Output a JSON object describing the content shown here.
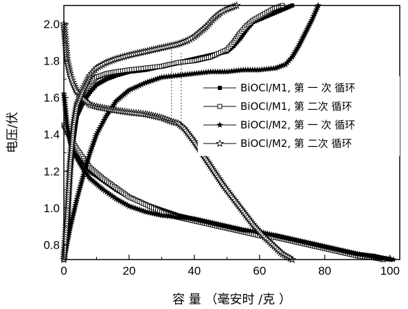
{
  "chart_data": {
    "type": "line",
    "title": "",
    "xlabel": "容 量 （毫安时 /克 ）",
    "ylabel": "电压/伏",
    "xlim": [
      0,
      103
    ],
    "ylim": [
      0.72,
      2.1
    ],
    "xticks": [
      0,
      20,
      40,
      60,
      80,
      100
    ],
    "yticks": [
      0.8,
      1.0,
      1.2,
      1.4,
      1.6,
      1.8,
      2.0
    ],
    "xtick_labels": [
      "0",
      "20",
      "40",
      "60",
      "80",
      "100"
    ],
    "ytick_labels": [
      "0.8",
      "1.0",
      "1.2",
      "1.4",
      "1.6",
      "1.8",
      "2.0"
    ],
    "grid": false,
    "legend_position": "right",
    "reference_lines": [
      {
        "x": 33.0,
        "y_from": 1.45,
        "y_to": 1.88,
        "style": "dotted"
      },
      {
        "x": 36.0,
        "y_from": 1.45,
        "y_to": 1.85,
        "style": "dotted"
      }
    ],
    "series": [
      {
        "name": "BiOCl/M1, 第 一 次 循环",
        "marker": "square-filled",
        "charge": [
          [
            0,
            0.72
          ],
          [
            1,
            0.9
          ],
          [
            2,
            1.2
          ],
          [
            3,
            1.38
          ],
          [
            4,
            1.5
          ],
          [
            6,
            1.58
          ],
          [
            8,
            1.63
          ],
          [
            10,
            1.67
          ],
          [
            13,
            1.7
          ],
          [
            16,
            1.72
          ],
          [
            20,
            1.74
          ],
          [
            25,
            1.75
          ],
          [
            30,
            1.77
          ],
          [
            35,
            1.79
          ],
          [
            40,
            1.81
          ],
          [
            45,
            1.83
          ],
          [
            50,
            1.85
          ],
          [
            52,
            1.88
          ],
          [
            54,
            1.92
          ],
          [
            56,
            1.97
          ],
          [
            58,
            2.01
          ],
          [
            62,
            2.04
          ],
          [
            66,
            2.07
          ],
          [
            70,
            2.1
          ]
        ],
        "discharge": [
          [
            0,
            1.45
          ],
          [
            2,
            1.38
          ],
          [
            4,
            1.3
          ],
          [
            6,
            1.25
          ],
          [
            8,
            1.2
          ],
          [
            12,
            1.15
          ],
          [
            16,
            1.1
          ],
          [
            20,
            1.06
          ],
          [
            25,
            1.02
          ],
          [
            30,
            0.99
          ],
          [
            35,
            0.96
          ],
          [
            40,
            0.94
          ],
          [
            45,
            0.92
          ],
          [
            50,
            0.9
          ],
          [
            55,
            0.88
          ],
          [
            60,
            0.86
          ],
          [
            65,
            0.85
          ],
          [
            70,
            0.83
          ],
          [
            75,
            0.81
          ],
          [
            80,
            0.79
          ],
          [
            85,
            0.77
          ],
          [
            90,
            0.75
          ],
          [
            95,
            0.74
          ],
          [
            100,
            0.72
          ]
        ]
      },
      {
        "name": "BiOCl/M1, 第 二次 循环",
        "marker": "square-open",
        "charge": [
          [
            0,
            0.72
          ],
          [
            1,
            0.9
          ],
          [
            2,
            1.25
          ],
          [
            3,
            1.45
          ],
          [
            4,
            1.56
          ],
          [
            6,
            1.63
          ],
          [
            8,
            1.68
          ],
          [
            10,
            1.71
          ],
          [
            13,
            1.73
          ],
          [
            16,
            1.74
          ],
          [
            20,
            1.75
          ],
          [
            25,
            1.76
          ],
          [
            30,
            1.77
          ],
          [
            35,
            1.79
          ],
          [
            40,
            1.8
          ],
          [
            45,
            1.82
          ],
          [
            50,
            1.86
          ],
          [
            52,
            1.9
          ],
          [
            54,
            1.95
          ],
          [
            56,
            1.99
          ],
          [
            58,
            2.02
          ],
          [
            61,
            2.05
          ],
          [
            64,
            2.08
          ],
          [
            67,
            2.1
          ]
        ],
        "discharge": [
          [
            0,
            1.45
          ],
          [
            2,
            1.38
          ],
          [
            4,
            1.32
          ],
          [
            6,
            1.27
          ],
          [
            8,
            1.22
          ],
          [
            12,
            1.16
          ],
          [
            16,
            1.11
          ],
          [
            20,
            1.06
          ],
          [
            25,
            1.02
          ],
          [
            30,
            0.98
          ],
          [
            35,
            0.95
          ],
          [
            40,
            0.93
          ],
          [
            45,
            0.91
          ],
          [
            50,
            0.89
          ],
          [
            55,
            0.87
          ],
          [
            60,
            0.85
          ],
          [
            65,
            0.84
          ],
          [
            70,
            0.82
          ],
          [
            75,
            0.8
          ],
          [
            80,
            0.78
          ],
          [
            85,
            0.76
          ],
          [
            90,
            0.74
          ],
          [
            95,
            0.73
          ],
          [
            98,
            0.72
          ]
        ]
      },
      {
        "name": "BiOCl/M2, 第 一 次 循环",
        "marker": "star-filled",
        "charge": [
          [
            0,
            0.72
          ],
          [
            2,
            0.9
          ],
          [
            4,
            1.05
          ],
          [
            6,
            1.18
          ],
          [
            8,
            1.3
          ],
          [
            10,
            1.4
          ],
          [
            13,
            1.5
          ],
          [
            16,
            1.58
          ],
          [
            20,
            1.64
          ],
          [
            25,
            1.68
          ],
          [
            30,
            1.71
          ],
          [
            35,
            1.72
          ],
          [
            40,
            1.73
          ],
          [
            45,
            1.74
          ],
          [
            50,
            1.74
          ],
          [
            55,
            1.75
          ],
          [
            60,
            1.75
          ],
          [
            65,
            1.76
          ],
          [
            68,
            1.78
          ],
          [
            70,
            1.82
          ],
          [
            72,
            1.88
          ],
          [
            74,
            1.95
          ],
          [
            76,
            2.02
          ],
          [
            78,
            2.1
          ]
        ],
        "discharge": [
          [
            0,
            1.62
          ],
          [
            1,
            1.45
          ],
          [
            2,
            1.35
          ],
          [
            4,
            1.27
          ],
          [
            6,
            1.21
          ],
          [
            8,
            1.16
          ],
          [
            12,
            1.1
          ],
          [
            16,
            1.05
          ],
          [
            20,
            1.01
          ],
          [
            25,
            0.98
          ],
          [
            30,
            0.96
          ],
          [
            35,
            0.95
          ],
          [
            40,
            0.94
          ],
          [
            45,
            0.92
          ],
          [
            50,
            0.9
          ],
          [
            55,
            0.88
          ],
          [
            60,
            0.87
          ],
          [
            65,
            0.85
          ],
          [
            70,
            0.83
          ],
          [
            75,
            0.81
          ],
          [
            80,
            0.79
          ],
          [
            85,
            0.77
          ],
          [
            90,
            0.75
          ],
          [
            96,
            0.73
          ],
          [
            101,
            0.72
          ]
        ]
      },
      {
        "name": "BiOCl/M2, 第 二次 循环",
        "marker": "star-open",
        "charge": [
          [
            0,
            2.0
          ],
          [
            0.5,
            1.9
          ],
          [
            1,
            1.8
          ],
          [
            2,
            1.72
          ],
          [
            3,
            1.67
          ],
          [
            4,
            1.63
          ],
          [
            6,
            1.59
          ],
          [
            8,
            1.56
          ],
          [
            10,
            1.55
          ],
          [
            13,
            1.54
          ],
          [
            16,
            1.53
          ],
          [
            20,
            1.52
          ],
          [
            25,
            1.51
          ],
          [
            30,
            1.49
          ],
          [
            33,
            1.47
          ],
          [
            35,
            1.46
          ],
          [
            37,
            1.43
          ],
          [
            40,
            1.36
          ],
          [
            43,
            1.28
          ],
          [
            46,
            1.2
          ],
          [
            49,
            1.12
          ],
          [
            52,
            1.05
          ],
          [
            55,
            0.98
          ],
          [
            58,
            0.91
          ],
          [
            61,
            0.85
          ],
          [
            64,
            0.8
          ],
          [
            67,
            0.75
          ],
          [
            70,
            0.72
          ]
        ],
        "discharge": [
          [
            0,
            0.72
          ],
          [
            1,
            0.95
          ],
          [
            2,
            1.25
          ],
          [
            3,
            1.45
          ],
          [
            4,
            1.56
          ],
          [
            6,
            1.65
          ],
          [
            8,
            1.72
          ],
          [
            10,
            1.76
          ],
          [
            13,
            1.79
          ],
          [
            16,
            1.81
          ],
          [
            20,
            1.83
          ],
          [
            25,
            1.85
          ],
          [
            30,
            1.87
          ],
          [
            35,
            1.89
          ],
          [
            38,
            1.91
          ],
          [
            40,
            1.93
          ],
          [
            42,
            1.96
          ],
          [
            44,
            1.99
          ],
          [
            46,
            2.03
          ],
          [
            48,
            2.06
          ],
          [
            50,
            2.08
          ],
          [
            53,
            2.1
          ]
        ]
      }
    ]
  }
}
